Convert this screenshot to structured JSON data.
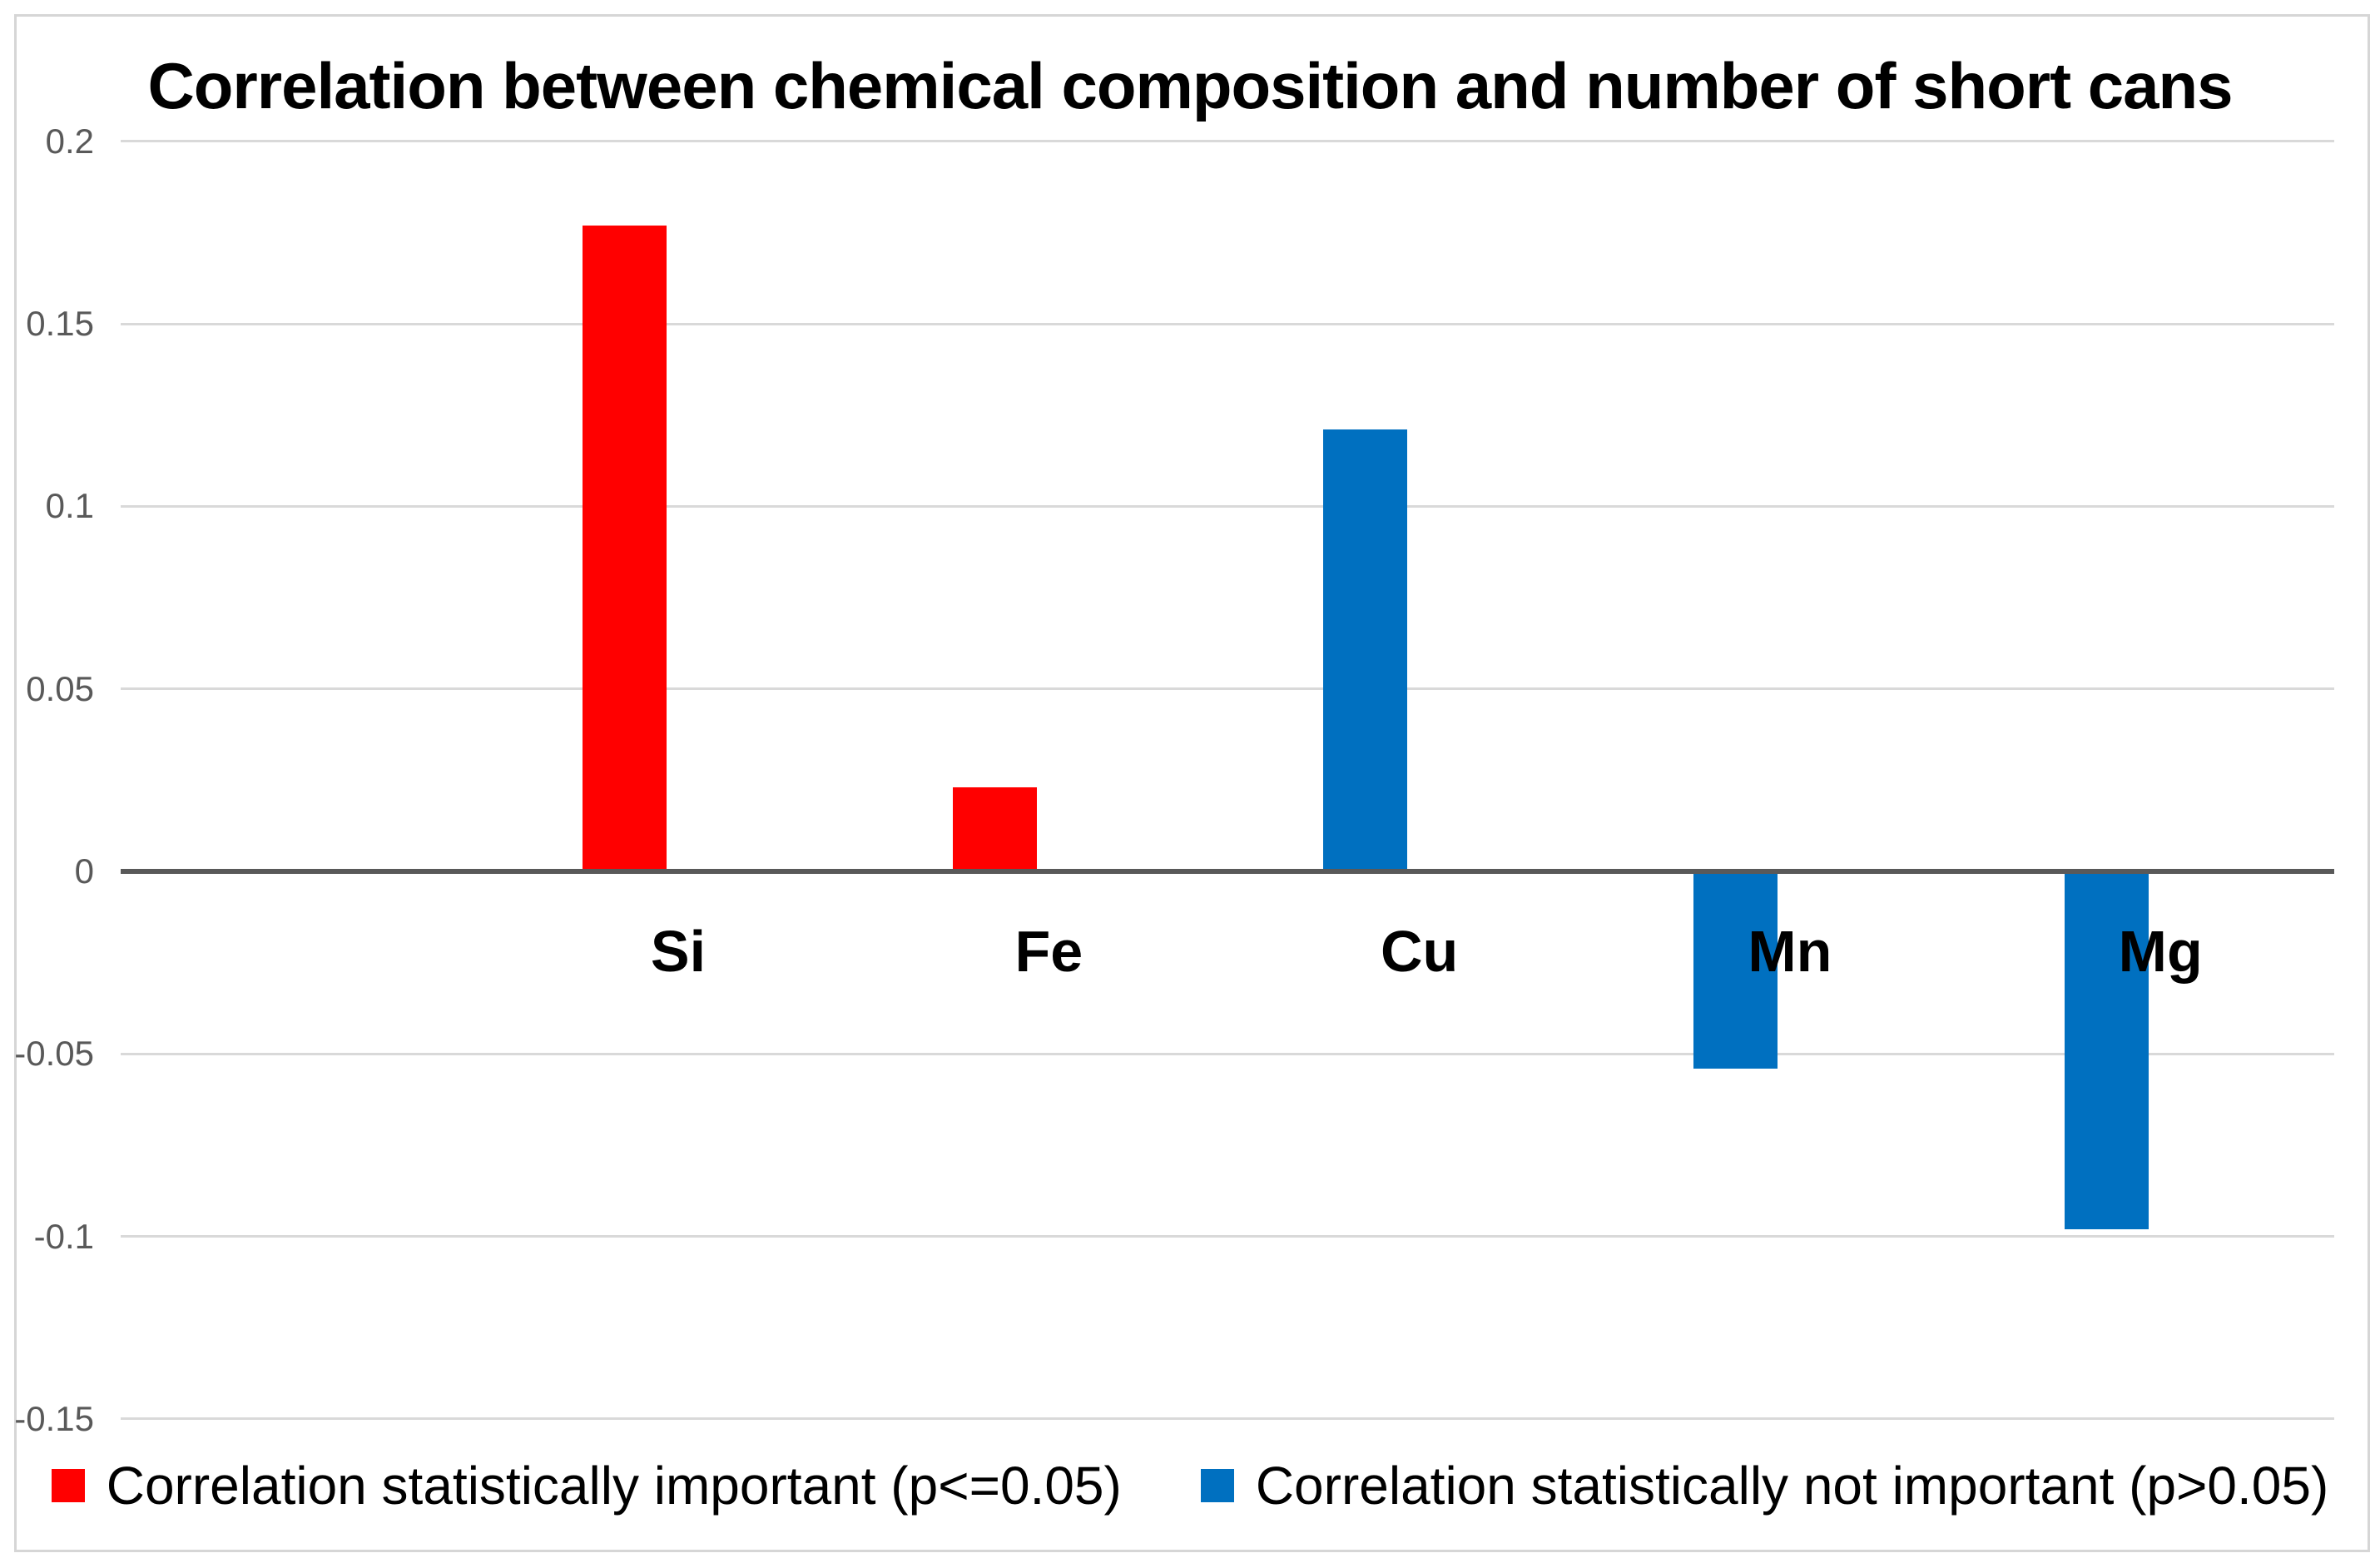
{
  "chart_data": {
    "type": "bar",
    "title": "Correlation between chemical composition and number of short cans",
    "xlabel": "",
    "ylabel": "",
    "categories": [
      "Si",
      "Fe",
      "Cu",
      "Mn",
      "Mg"
    ],
    "values": [
      0.177,
      0.023,
      0.121,
      -0.054,
      -0.098
    ],
    "bar_colors": [
      "#ff0000",
      "#ff0000",
      "#0070c0",
      "#0070c0",
      "#0070c0"
    ],
    "ylim": [
      -0.15,
      0.2
    ],
    "ytick_step": 0.05,
    "yticks": [
      {
        "value": 0.2,
        "label": "0.2"
      },
      {
        "value": 0.15,
        "label": "0.15"
      },
      {
        "value": 0.1,
        "label": "0.1"
      },
      {
        "value": 0.05,
        "label": "0.05"
      },
      {
        "value": 0,
        "label": "0"
      },
      {
        "value": -0.05,
        "label": "-0.05"
      },
      {
        "value": -0.1,
        "label": "-0.1"
      },
      {
        "value": -0.15,
        "label": "-0.15"
      }
    ],
    "grid": true,
    "legend_position": "bottom",
    "legend": [
      {
        "label": "Correlation statistically important (p<=0.05)",
        "color": "#ff0000"
      },
      {
        "label": "Correlation statistically not important (p>0.05)",
        "color": "#0070c0"
      }
    ],
    "colors": {
      "significant": "#ff0000",
      "not_significant": "#0070c0",
      "gridline": "#d9d9d9",
      "axis": "#595959",
      "tick_text": "#595959"
    }
  }
}
